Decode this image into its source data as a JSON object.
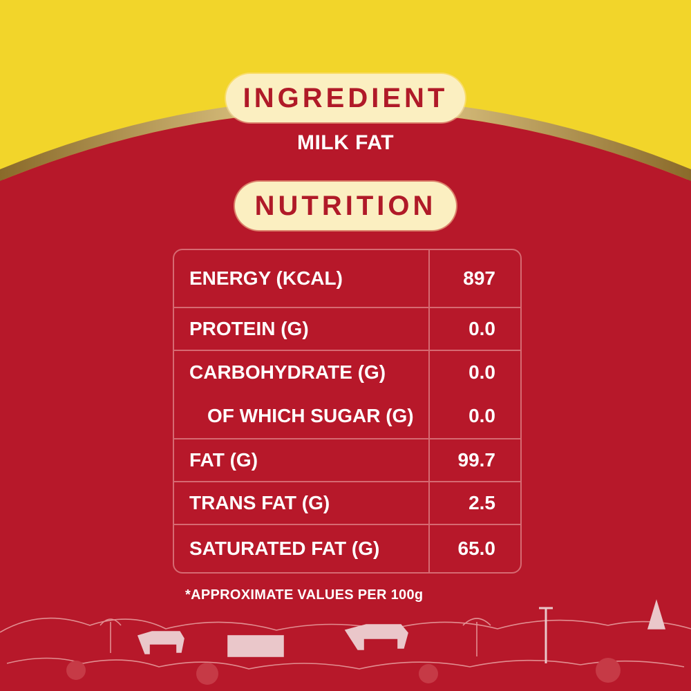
{
  "ingredient": {
    "heading": "INGREDIENT",
    "value": "MILK FAT"
  },
  "nutrition": {
    "heading": "NUTRITION",
    "rows": [
      {
        "label": "ENERGY (KCAL)",
        "value": "897"
      },
      {
        "label": "PROTEIN (G)",
        "value": "0.0"
      },
      {
        "label": "CARBOHYDRATE (G)",
        "value": "0.0"
      },
      {
        "label": "OF WHICH SUGAR (G)",
        "value": "0.0"
      },
      {
        "label": "FAT (G)",
        "value": "99.7"
      },
      {
        "label": "TRANS FAT (G)",
        "value": "2.5"
      },
      {
        "label": "SATURATED FAT (G)",
        "value": "65.0"
      }
    ],
    "footnote": "*APPROXIMATE VALUES PER 100g"
  },
  "colors": {
    "background_red": "#b7182a",
    "top_yellow": "#f2d52a",
    "pill_cream": "#fbefc1",
    "heading_red": "#b01a28",
    "table_border": "#d66a72",
    "gold_rim": "#c9a24a"
  }
}
